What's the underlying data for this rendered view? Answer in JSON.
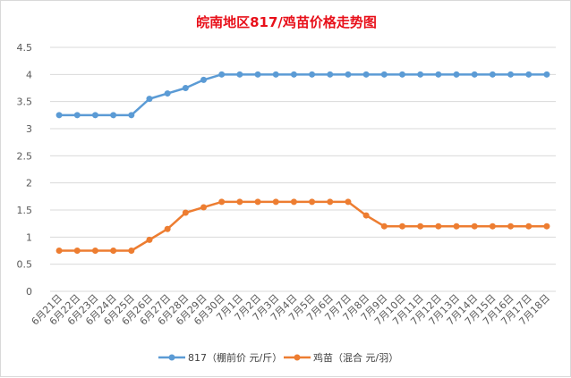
{
  "chart_data": {
    "type": "line",
    "title": "皖南地区817/鸡苗价格走势图",
    "categories": [
      "6月21日",
      "6月22日",
      "6月23日",
      "6月24日",
      "6月25日",
      "6月26日",
      "6月27日",
      "6月28日",
      "6月29日",
      "6月30日",
      "7月1日",
      "7月2日",
      "7月3日",
      "7月4日",
      "7月5日",
      "7月6日",
      "7月7日",
      "7月8日",
      "7月9日",
      "7月10日",
      "7月11日",
      "7月12日",
      "7月13日",
      "7月14日",
      "7月15日",
      "7月16日",
      "7月17日",
      "7月18日"
    ],
    "series": [
      {
        "name": "817（棚前价 元/斤）",
        "color": "#5b9bd5",
        "values": [
          3.25,
          3.25,
          3.25,
          3.25,
          3.25,
          3.55,
          3.65,
          3.75,
          3.9,
          4,
          4,
          4,
          4,
          4,
          4,
          4,
          4,
          4,
          4,
          4,
          4,
          4,
          4,
          4,
          4,
          4,
          4,
          4
        ]
      },
      {
        "name": "鸡苗（混合 元/羽）",
        "color": "#ed7d31",
        "values": [
          0.75,
          0.75,
          0.75,
          0.75,
          0.75,
          0.95,
          1.15,
          1.45,
          1.55,
          1.65,
          1.65,
          1.65,
          1.65,
          1.65,
          1.65,
          1.65,
          1.65,
          1.4,
          1.2,
          1.2,
          1.2,
          1.2,
          1.2,
          1.2,
          1.2,
          1.2,
          1.2,
          1.2
        ]
      }
    ],
    "ylim": [
      0,
      4.5
    ],
    "yticks": [
      "0",
      "0.5",
      "1",
      "1.5",
      "2",
      "2.5",
      "3",
      "3.5",
      "4",
      "4.5"
    ],
    "grid": true,
    "legend": "bottom"
  }
}
